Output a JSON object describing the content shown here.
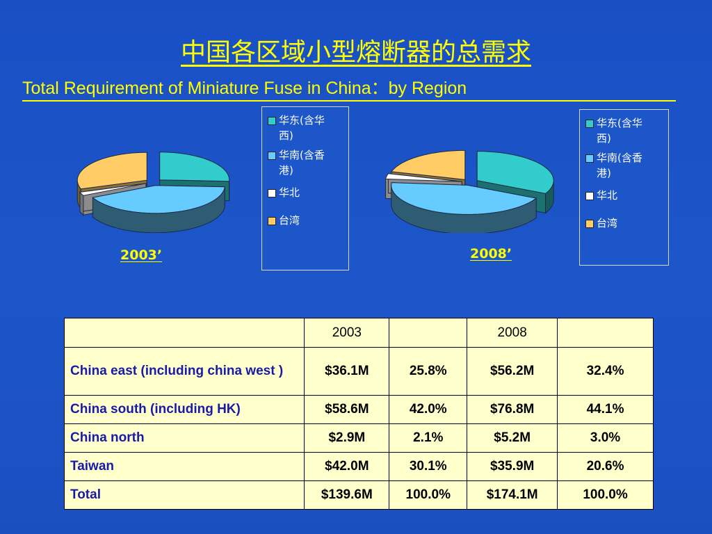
{
  "title_cn": "中国各区域小型熔断器的总需求",
  "title_en": "Total Requirement of Miniature Fuse in China：by Region",
  "chart_data": [
    {
      "type": "pie",
      "title": "2003’",
      "categories": [
        "华东(含华西)",
        "华南(含香港)",
        "华北",
        "台湾"
      ],
      "values": [
        25.8,
        42.0,
        2.1,
        30.1
      ],
      "colors": [
        "#33cccc",
        "#66ccff",
        "#ffffff",
        "#ffcc66"
      ],
      "legend_items": [
        "华东(含华\n西)",
        "华南(含香\n港)",
        "华北",
        "台湾"
      ],
      "legend_position": "right",
      "style": "3d-exploded"
    },
    {
      "type": "pie",
      "title": "2008’",
      "categories": [
        "华东(含华西)",
        "华南(含香港)",
        "华北",
        "台湾"
      ],
      "values": [
        32.4,
        44.1,
        3.0,
        20.6
      ],
      "colors": [
        "#33cccc",
        "#66ccff",
        "#ffffff",
        "#ffcc66"
      ],
      "legend_items": [
        "华东(含华\n西)",
        "华南(含香\n港)",
        "华北",
        "台湾"
      ],
      "legend_position": "right",
      "style": "3d-exploded"
    },
    {
      "type": "table",
      "headers": [
        "",
        "2003",
        "",
        "2008",
        ""
      ],
      "rows": [
        [
          "China east (including china west )",
          "$36.1M",
          "25.8%",
          "$56.2M",
          "32.4%"
        ],
        [
          "China south (including HK)",
          "$58.6M",
          "42.0%",
          "$76.8M",
          "44.1%"
        ],
        [
          "China north",
          "$2.9M",
          "2.1%",
          "$5.2M",
          "3.0%"
        ],
        [
          "Taiwan",
          "$42.0M",
          "30.1%",
          "$35.9M",
          "20.6%"
        ],
        [
          "Total",
          "$139.6M",
          "100.0%",
          "$174.1M",
          "100.0%"
        ]
      ]
    }
  ]
}
